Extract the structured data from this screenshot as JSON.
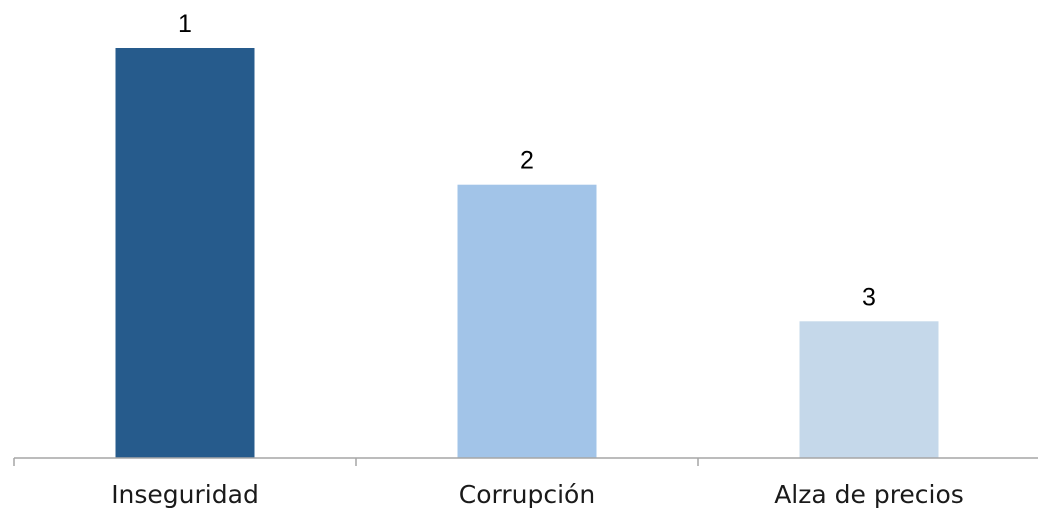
{
  "chart_data": {
    "type": "bar",
    "categories": [
      "Inseguridad",
      "Corrupción",
      "Alza de precios"
    ],
    "values": [
      3,
      2,
      1
    ],
    "data_labels": [
      "1",
      "2",
      "3"
    ],
    "colors": [
      "#265B8C",
      "#A2C4E8",
      "#C5D8EA"
    ],
    "title": "",
    "xlabel": "",
    "ylabel": "",
    "ylim": [
      0,
      3.3
    ],
    "grid": false,
    "legend": "none"
  },
  "colors": {
    "axis": "#A6A6A6",
    "background": "#FFFFFF"
  }
}
